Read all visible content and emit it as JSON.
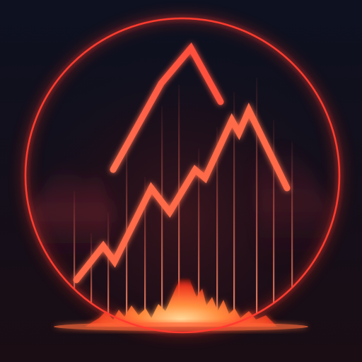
{
  "illustration": {
    "subject": "glowing-stock-chart-in-circle",
    "colors": {
      "background_top": "#0d1120",
      "background_bottom": "#1a0d14",
      "ring": "#ff3a2e",
      "ring_glow": "#ff2a1a",
      "line_upper_start": "#ff5a3a",
      "line_upper_end": "#ff8a6a",
      "line_lower": "#ff6a4a",
      "bars": "#ff7a5a",
      "flame_core": "#ffd090",
      "flame_outer": "#ff4020"
    }
  }
}
